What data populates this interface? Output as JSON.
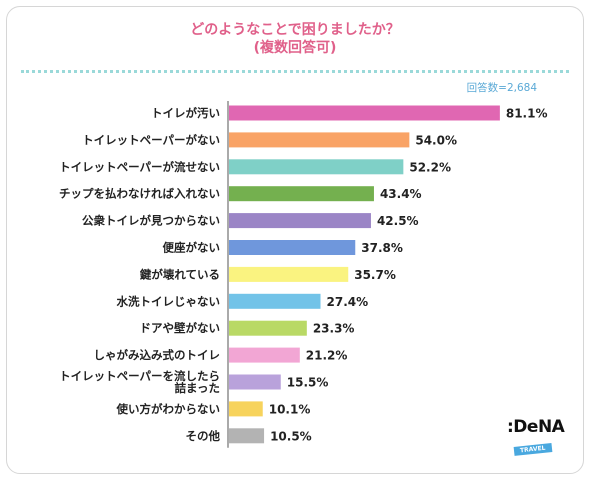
{
  "title": {
    "line1": "どのようなことで困りましたか？",
    "line2": "(複数回答可)"
  },
  "note": "回答数=2,684",
  "logo": {
    "main": ":DeNA",
    "sub": "TRAVEL"
  },
  "chart_data": {
    "type": "bar",
    "orientation": "horizontal",
    "categories": [
      [
        "トイレが汚い"
      ],
      [
        "トイレットペーパーがない"
      ],
      [
        "トイレットペーパーが流せない"
      ],
      [
        "チップを払わなければ入れない"
      ],
      [
        "公衆トイレが見つからない"
      ],
      [
        "便座がない"
      ],
      [
        "鍵が壊れている"
      ],
      [
        "水洗トイレじゃない"
      ],
      [
        "ドアや壁がない"
      ],
      [
        "しゃがみ込み式のトイレ"
      ],
      [
        "トイレットペーパーを流したら",
        "詰まった"
      ],
      [
        "使い方がわからない"
      ],
      [
        "その他"
      ]
    ],
    "values": [
      81.1,
      54.0,
      52.2,
      43.4,
      42.5,
      37.8,
      35.7,
      27.4,
      23.3,
      21.2,
      15.5,
      10.1,
      10.5
    ],
    "value_labels": [
      "81.1%",
      "54.0%",
      "52.2%",
      "43.4%",
      "42.5%",
      "37.8%",
      "35.7%",
      "27.4%",
      "23.3%",
      "21.2%",
      "15.5%",
      "10.1%",
      "10.5%"
    ],
    "colors": [
      "#e067b2",
      "#f9a366",
      "#7fd0c7",
      "#74b04f",
      "#9b85c6",
      "#6f97dc",
      "#faf380",
      "#72c3e8",
      "#b9d965",
      "#f2a6d4",
      "#b9a2db",
      "#f7d35c",
      "#b3b3b3"
    ],
    "xlim": [
      0,
      100
    ],
    "grid": false
  }
}
